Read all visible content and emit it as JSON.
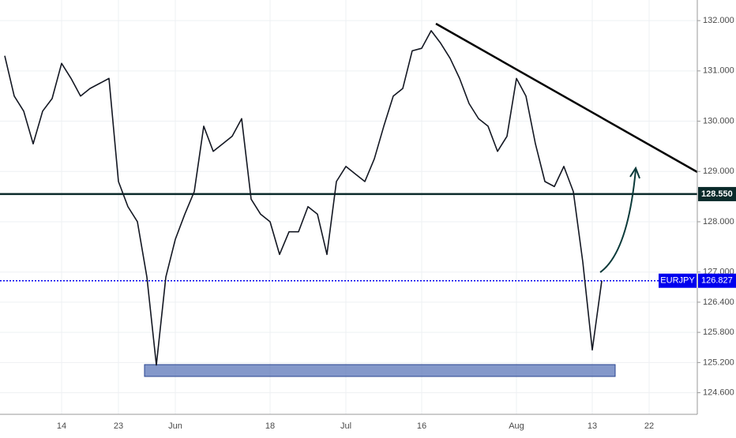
{
  "chart_data": {
    "type": "line",
    "categories": [
      null,
      null,
      null,
      null,
      null,
      null,
      "14",
      null,
      null,
      null,
      null,
      null,
      "23",
      null,
      null,
      null,
      null,
      null,
      "Jun",
      null,
      null,
      null,
      null,
      null,
      null,
      null,
      null,
      null,
      "18",
      null,
      null,
      null,
      null,
      null,
      null,
      null,
      "Jul",
      null,
      null,
      null,
      null,
      null,
      null,
      null,
      "16",
      null,
      null,
      null,
      null,
      null,
      null,
      null,
      null,
      null,
      "Aug",
      null,
      null,
      null,
      null,
      null,
      null,
      null,
      "13",
      null,
      null,
      null,
      null,
      null,
      "22",
      null,
      null,
      null,
      null
    ],
    "series": [
      {
        "name": "EURJPY",
        "color": "#131722",
        "values": [
          131.3,
          130.5,
          130.2,
          129.55,
          130.2,
          130.45,
          131.15,
          130.85,
          130.5,
          130.65,
          130.75,
          130.85,
          128.8,
          128.3,
          128.0,
          126.9,
          125.15,
          126.9,
          127.65,
          128.15,
          128.6,
          129.9,
          129.4,
          129.55,
          129.7,
          130.05,
          128.45,
          128.15,
          128.0,
          127.35,
          127.8,
          127.8,
          128.3,
          128.15,
          127.35,
          128.8,
          129.1,
          128.95,
          128.8,
          129.25,
          129.9,
          130.5,
          130.65,
          131.4,
          131.45,
          131.8,
          131.55,
          131.25,
          130.85,
          130.35,
          130.05,
          129.9,
          129.4,
          129.7,
          130.85,
          130.5,
          129.55,
          128.8,
          128.7,
          129.1,
          128.6,
          127.2,
          125.45,
          126.827,
          null,
          null,
          null,
          null,
          null,
          null,
          null,
          null,
          null
        ]
      }
    ],
    "ylim": [
      124.17,
      132.41
    ],
    "yticks": [
      {
        "value": 124.6,
        "label": "124.600"
      },
      {
        "value": 125.2,
        "label": "125.200"
      },
      {
        "value": 125.8,
        "label": "125.800"
      },
      {
        "value": 126.4,
        "label": "126.400"
      },
      {
        "value": 127,
        "label": "127.000"
      },
      {
        "value": 128,
        "label": "128.000"
      },
      {
        "value": 129,
        "label": "129.000"
      },
      {
        "value": 130,
        "label": "130.000"
      },
      {
        "value": 131,
        "label": "131.000"
      },
      {
        "value": 132,
        "label": "132.000"
      }
    ],
    "grid": true,
    "level": {
      "value": 128.55,
      "label": "128.550",
      "color": "#0b2a2a"
    },
    "last_price": {
      "name": "EURJPY",
      "value": 126.827,
      "label": "126.827",
      "color": "#0000ee"
    }
  }
}
